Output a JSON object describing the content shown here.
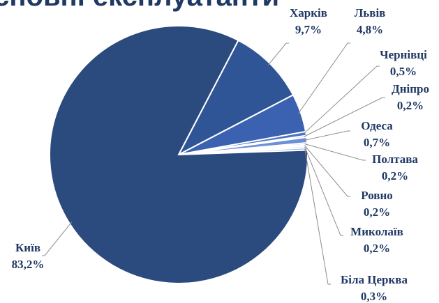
{
  "chart_data": {
    "type": "pie",
    "title": "Основні експлуатанти",
    "categories": [
      "Харків",
      "Львів",
      "Чернівці",
      "Дніпро",
      "Одеса",
      "Полтава",
      "Ровно",
      "Миколаїв",
      "Біла Церква",
      "Київ"
    ],
    "values": [
      9.7,
      4.8,
      0.5,
      0.2,
      0.7,
      0.2,
      0.2,
      0.2,
      0.3,
      83.2
    ],
    "value_labels": [
      "9,7%",
      "4,8%",
      "0,5%",
      "0,2%",
      "0,7%",
      "0,2%",
      "0,2%",
      "0,2%",
      "0,3%",
      "83,2%"
    ],
    "colors": [
      "#2f5597",
      "#3a62b0",
      "#4a72c0",
      "#5b82cc",
      "#6b90d4",
      "#7a9cd8",
      "#89a8dc",
      "#98b4e2",
      "#a8c0e8",
      "#2b4a7e"
    ]
  }
}
